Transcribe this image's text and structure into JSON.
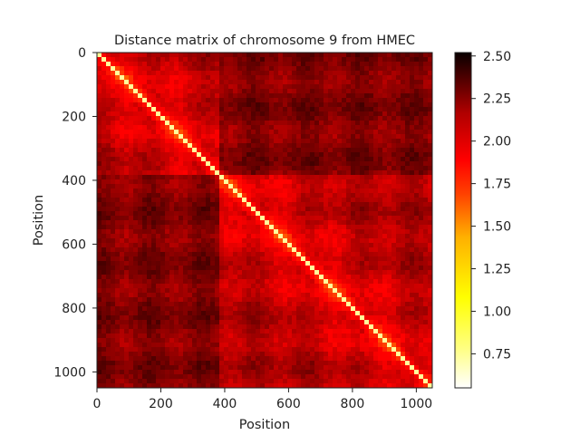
{
  "chart_data": {
    "type": "heatmap",
    "title": "Distance matrix of chromosome 9 from HMEC",
    "xlabel": "Position",
    "ylabel": "Position",
    "x_range": [
      0,
      1050
    ],
    "y_range": [
      0,
      1050
    ],
    "y_inverted": true,
    "x_ticks": [
      0,
      200,
      400,
      600,
      800,
      1000
    ],
    "y_ticks": [
      0,
      200,
      400,
      600,
      800,
      1000
    ],
    "x_tick_labels": [
      "0",
      "200",
      "400",
      "600",
      "800",
      "1000"
    ],
    "y_tick_labels": [
      "0",
      "200",
      "400",
      "600",
      "800",
      "1000"
    ],
    "domain_boundary": 378,
    "colormap": "hot_r",
    "colorbar": {
      "min": 0.55,
      "max": 2.52,
      "ticks": [
        0.75,
        1.0,
        1.25,
        1.5,
        1.75,
        2.0,
        2.25,
        2.5
      ],
      "tick_labels": [
        "0.75",
        "1.00",
        "1.25",
        "1.50",
        "1.75",
        "2.00",
        "2.25",
        "2.50"
      ],
      "placement": "right"
    },
    "grid": false
  }
}
